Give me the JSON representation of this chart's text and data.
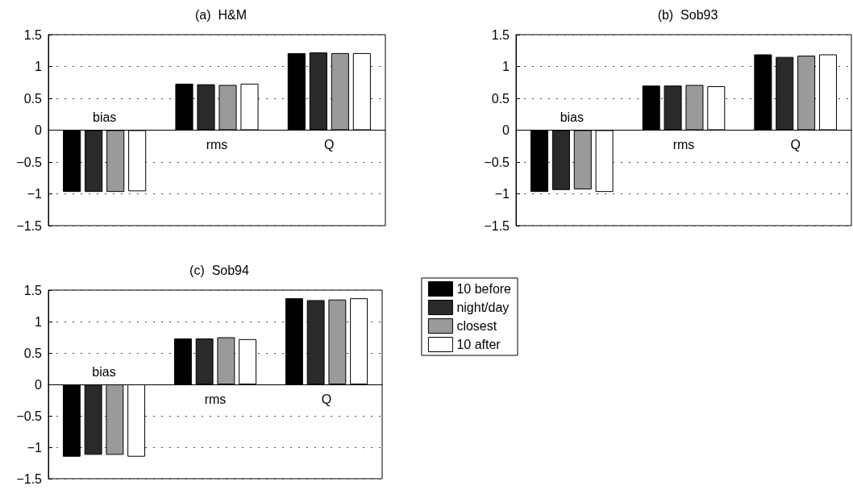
{
  "chart_data": [
    {
      "type": "bar",
      "title": "(a)  H&M",
      "categories": [
        "bias",
        "rms",
        "Q"
      ],
      "series": [
        {
          "color": "#000000",
          "values": [
            -0.97,
            0.73,
            1.21
          ]
        },
        {
          "color": "#2a2a2a",
          "values": [
            -0.97,
            0.72,
            1.22
          ]
        },
        {
          "color": "#9a9a9a",
          "values": [
            -0.97,
            0.71,
            1.21
          ]
        },
        {
          "color": "#ffffff",
          "values": [
            -0.96,
            0.73,
            1.21
          ]
        }
      ],
      "ylim": [
        -1.5,
        1.5
      ],
      "yticks": [
        {
          "value": -1.5,
          "label": "−1.5"
        },
        {
          "value": -1,
          "label": "−1"
        },
        {
          "value": -0.5,
          "label": "−0.5"
        },
        0,
        0.5,
        1,
        1.5
      ],
      "grid": "y",
      "legend": false
    },
    {
      "type": "bar",
      "title": "(b)  Sob93",
      "categories": [
        "bias",
        "rms",
        "Q"
      ],
      "series": [
        {
          "color": "#000000",
          "values": [
            -0.97,
            0.7,
            1.19
          ]
        },
        {
          "color": "#2a2a2a",
          "values": [
            -0.94,
            0.7,
            1.15
          ]
        },
        {
          "color": "#9a9a9a",
          "values": [
            -0.93,
            0.71,
            1.17
          ]
        },
        {
          "color": "#ffffff",
          "values": [
            -0.97,
            0.69,
            1.19
          ]
        }
      ],
      "ylim": [
        -1.5,
        1.5
      ],
      "yticks": [
        {
          "value": -1.5,
          "label": "−1.5"
        },
        {
          "value": -1,
          "label": "−1"
        },
        {
          "value": -0.5,
          "label": "−0.5"
        },
        0,
        0.5,
        1,
        1.5
      ],
      "grid": "y",
      "legend": false
    },
    {
      "type": "bar",
      "title": "(c)  Sob94",
      "categories": [
        "bias",
        "rms",
        "Q"
      ],
      "series": [
        {
          "name": "10 before",
          "color": "#000000",
          "values": [
            -1.15,
            0.73,
            1.37
          ]
        },
        {
          "name": "night/day",
          "color": "#2a2a2a",
          "values": [
            -1.12,
            0.73,
            1.34
          ]
        },
        {
          "name": "closest",
          "color": "#9a9a9a",
          "values": [
            -1.12,
            0.75,
            1.35
          ]
        },
        {
          "name": "10 after",
          "color": "#ffffff",
          "values": [
            -1.15,
            0.72,
            1.37
          ]
        }
      ],
      "ylim": [
        -1.5,
        1.5
      ],
      "yticks": [
        {
          "value": -1.5,
          "label": "−1.5"
        },
        {
          "value": -1,
          "label": "−1"
        },
        {
          "value": -0.5,
          "label": "−0.5"
        },
        0,
        0.5,
        1,
        1.5
      ],
      "grid": "y",
      "legend": "right"
    }
  ]
}
